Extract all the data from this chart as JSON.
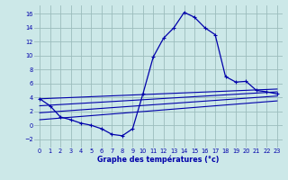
{
  "title": "Graphe des températures (°c)",
  "bg_color": "#cce8e8",
  "grid_color": "#9bbcbc",
  "line_color": "#0000aa",
  "xlim": [
    -0.5,
    23.5
  ],
  "ylim": [
    -3.2,
    17.2
  ],
  "xticks": [
    0,
    1,
    2,
    3,
    4,
    5,
    6,
    7,
    8,
    9,
    10,
    11,
    12,
    13,
    14,
    15,
    16,
    17,
    18,
    19,
    20,
    21,
    22,
    23
  ],
  "yticks": [
    -2,
    0,
    2,
    4,
    6,
    8,
    10,
    12,
    14,
    16
  ],
  "hours": [
    0,
    1,
    2,
    3,
    4,
    5,
    6,
    7,
    8,
    9,
    10,
    11,
    12,
    13,
    14,
    15,
    16,
    17,
    18,
    19,
    20,
    21,
    22,
    23
  ],
  "temp": [
    3.8,
    2.8,
    1.2,
    0.8,
    0.3,
    0.0,
    -0.5,
    -1.3,
    -1.5,
    -0.5,
    4.5,
    9.8,
    12.5,
    14.0,
    16.2,
    15.5,
    14.0,
    13.0,
    7.0,
    6.2,
    6.3,
    5.0,
    4.8,
    4.5
  ],
  "ref_lines": [
    {
      "x0": 0,
      "y0": 3.8,
      "x1": 23,
      "y1": 5.2
    },
    {
      "x0": 0,
      "y0": 2.8,
      "x1": 23,
      "y1": 4.8
    },
    {
      "x0": 0,
      "y0": 1.8,
      "x1": 23,
      "y1": 4.2
    },
    {
      "x0": 0,
      "y0": 0.8,
      "x1": 23,
      "y1": 3.5
    }
  ]
}
